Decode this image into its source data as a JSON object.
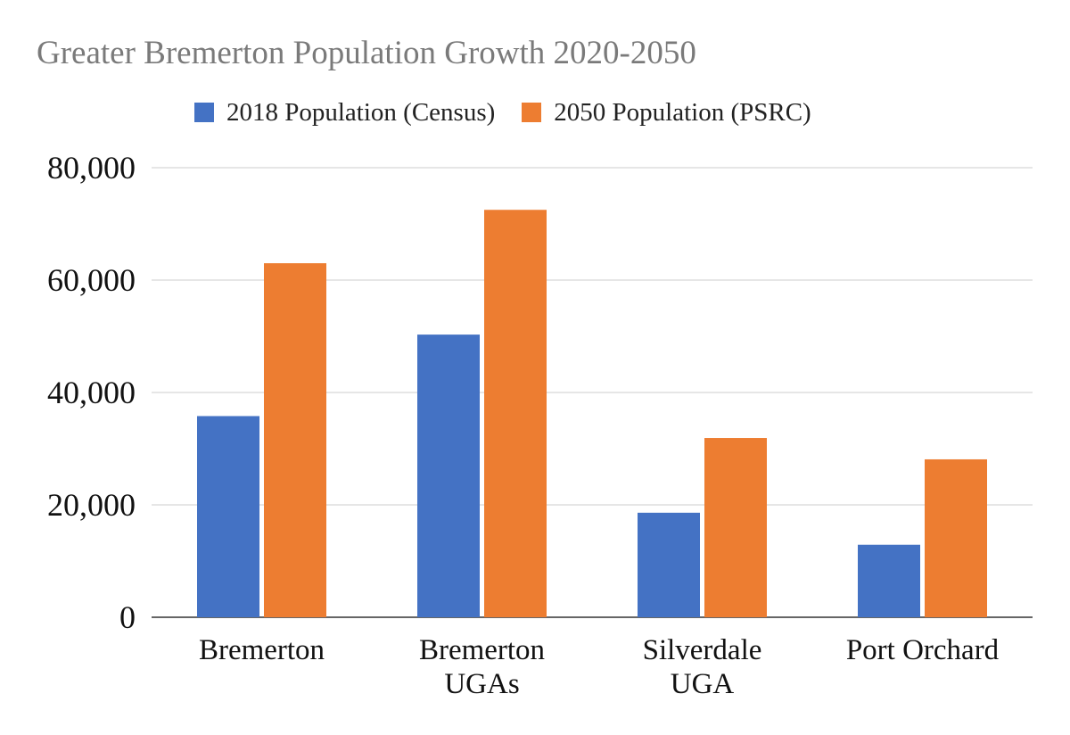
{
  "chart_data": {
    "type": "bar",
    "title": "Greater Bremerton Population Growth 2020-2050",
    "categories": [
      [
        "Bremerton"
      ],
      [
        "Bremerton",
        "UGAs"
      ],
      [
        "Silverdale",
        "UGA"
      ],
      [
        "Port Orchard"
      ]
    ],
    "series": [
      {
        "name": "2018 Population (Census)",
        "color": "#4472c4",
        "values": [
          35800,
          50300,
          18600,
          12900
        ]
      },
      {
        "name": "2050 Population (PSRC)",
        "color": "#ed7d31",
        "values": [
          63000,
          72500,
          31900,
          28100
        ]
      }
    ],
    "ylim": [
      0,
      80000
    ],
    "yticks": [
      0,
      20000,
      40000,
      60000,
      80000
    ],
    "ytick_labels": [
      "0",
      "20,000",
      "40,000",
      "60,000",
      "80,000"
    ],
    "xlabel": "",
    "ylabel": "",
    "grid": true,
    "legend_position": "top"
  }
}
